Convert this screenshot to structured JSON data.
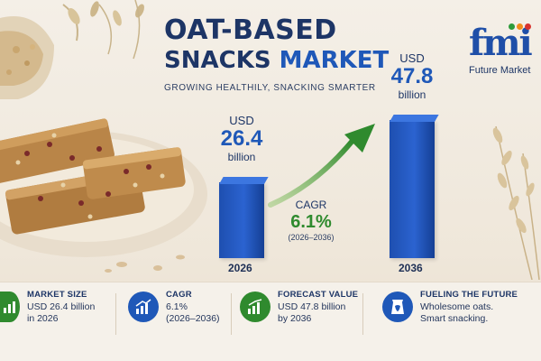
{
  "title": {
    "line1": "OAT-BASED",
    "line2_a": "SNACKS",
    "line2_b": "MARKET"
  },
  "subtitle": "GROWING HEALTHILY, SNACKING SMARTER",
  "logo": {
    "mark": "fmi",
    "text": "Future Market",
    "dot_colors": [
      "#2e9b3a",
      "#f28c1c",
      "#d8332f"
    ]
  },
  "chart_data": {
    "type": "bar",
    "categories": [
      "2026",
      "2036"
    ],
    "values": [
      26.4,
      47.8
    ],
    "title": "",
    "xlabel": "",
    "ylabel": "",
    "units": "USD billion",
    "annotation": {
      "label": "CAGR",
      "value": "6.1%",
      "range": "(2026–2036)"
    }
  },
  "bars": [
    {
      "usd": "USD",
      "value": "26.4",
      "unit": "billion",
      "year": "2026"
    },
    {
      "usd": "USD",
      "value": "47.8",
      "unit": "billion",
      "year": "2036"
    }
  ],
  "cagr": {
    "label": "CAGR",
    "value": "6.1%",
    "range": "(2026–2036)"
  },
  "cards": [
    {
      "icon": "bar-chart-icon",
      "title": "MARKET SIZE",
      "body": "USD 26.4 billion\nin 2026",
      "color": "#2f8a2e"
    },
    {
      "icon": "growth-chart-icon",
      "title": "CAGR",
      "body": "6.1%\n(2026–2036)",
      "color": "#1f58b8"
    },
    {
      "icon": "forecast-chart-icon",
      "title": "FORECAST VALUE",
      "body": "USD 47.8 billion\nby 2036",
      "color": "#2f8a2e"
    },
    {
      "icon": "snack-bag-icon",
      "title": "FUELING THE FUTURE",
      "body": "Wholesome oats.\nSmart snacking.",
      "color": "#1f58b8"
    }
  ],
  "colors": {
    "navy": "#1d3566",
    "blue": "#1f58b8",
    "green": "#2f8a2e",
    "background": "#f4efe7"
  }
}
